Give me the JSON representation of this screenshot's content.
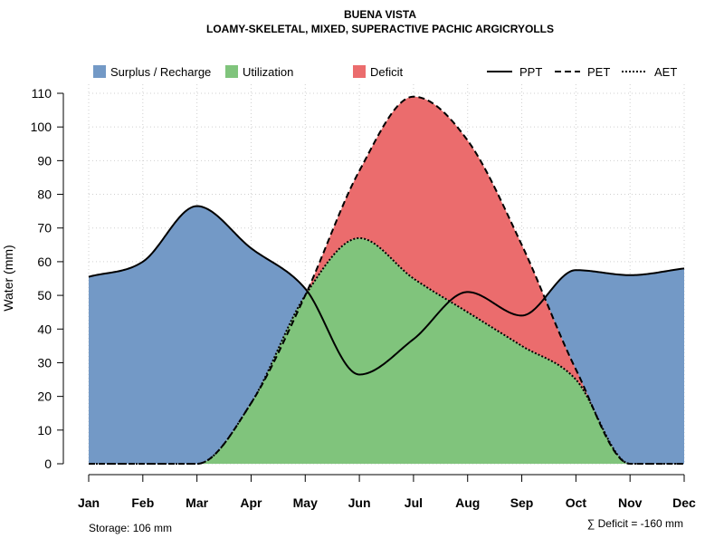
{
  "chart_data": {
    "type": "area",
    "title": "BUENA VISTA",
    "subtitle": "LOAMY-SKELETAL, MIXED, SUPERACTIVE PACHIC ARGICRYOLLS",
    "xlabel": "",
    "ylabel": "Water (mm)",
    "ylim": [
      0,
      110
    ],
    "yticks": [
      0,
      10,
      20,
      30,
      40,
      50,
      60,
      70,
      80,
      90,
      100,
      110
    ],
    "categories": [
      "Jan",
      "Feb",
      "Mar",
      "Apr",
      "May",
      "Jun",
      "Jul",
      "Aug",
      "Sep",
      "Oct",
      "Nov",
      "Dec"
    ],
    "grid": true,
    "legend_position": "top",
    "series": [
      {
        "name": "PPT",
        "style": "solid",
        "values": [
          55.5,
          60,
          76.5,
          64,
          52,
          26.5,
          37,
          51,
          44,
          57.5,
          56,
          58
        ]
      },
      {
        "name": "PET",
        "style": "dashed",
        "values": [
          0,
          0,
          0,
          18,
          50,
          87,
          109,
          96,
          65,
          28,
          0,
          0
        ]
      },
      {
        "name": "AET",
        "style": "dotted",
        "values": [
          0,
          0,
          0,
          18,
          50,
          67,
          55,
          45,
          35,
          25,
          0,
          0
        ]
      }
    ],
    "areas": [
      {
        "name": "Surplus / Recharge",
        "color": "#7399C6"
      },
      {
        "name": "Utilization",
        "color": "#80C47C"
      },
      {
        "name": "Deficit",
        "color": "#EB6C6D"
      }
    ],
    "lines_legend": [
      "PPT",
      "PET",
      "AET"
    ],
    "annotations": {
      "storage": "Storage: 106 mm",
      "deficit": "∑ Deficit = -160 mm"
    }
  }
}
